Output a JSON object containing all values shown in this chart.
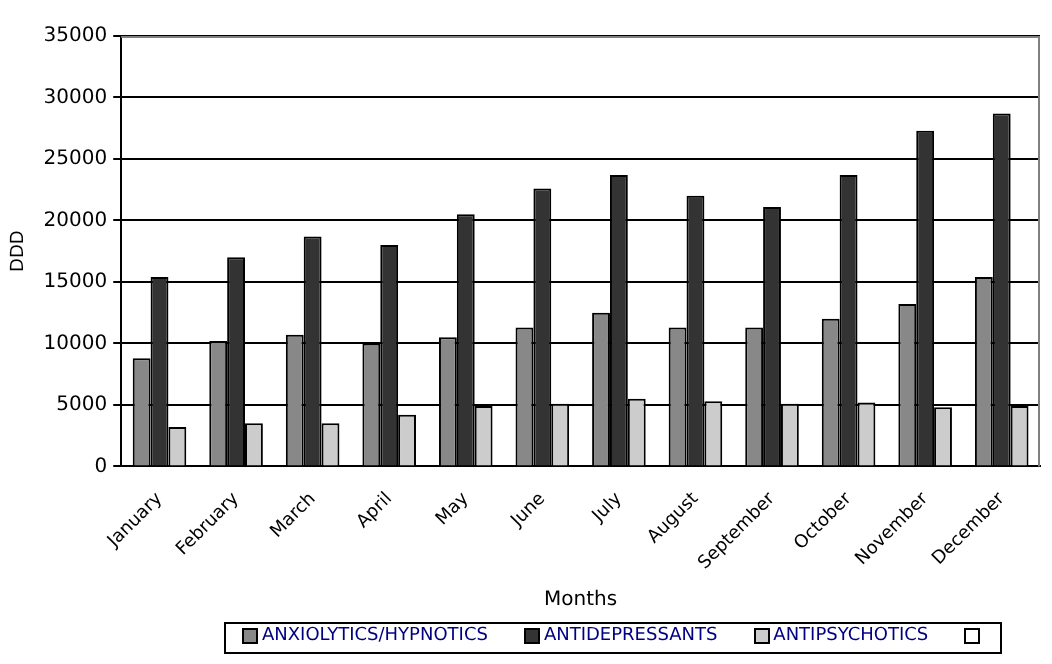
{
  "chart_data": {
    "type": "bar",
    "xlabel": "Months",
    "ylabel": "DDD",
    "categories": [
      "January",
      "February",
      "March",
      "April",
      "May",
      "June",
      "July",
      "August",
      "September",
      "October",
      "November",
      "December"
    ],
    "series": [
      {
        "name": "ANXIOLYTICS/HYPNOTICS",
        "color": "#888888",
        "values": [
          8800,
          10200,
          10700,
          10000,
          10500,
          11300,
          12500,
          11300,
          11300,
          12000,
          13200,
          15400
        ]
      },
      {
        "name": "ANTIDEPRESSANTS",
        "color": "#333333",
        "values": [
          15400,
          17000,
          18700,
          18000,
          20500,
          22600,
          23700,
          22000,
          21100,
          23700,
          27300,
          28700
        ]
      },
      {
        "name": "ANTIPSYCHOTICS",
        "color": "#cccccc",
        "values": [
          3200,
          3500,
          3500,
          4200,
          4900,
          5100,
          5500,
          5300,
          5100,
          5200,
          4800,
          4900
        ]
      }
    ],
    "ylim": [
      0,
      35000
    ],
    "yticks": [
      0,
      5000,
      10000,
      15000,
      20000,
      25000,
      30000,
      35000
    ],
    "grid": "y",
    "legend": "bottom"
  }
}
